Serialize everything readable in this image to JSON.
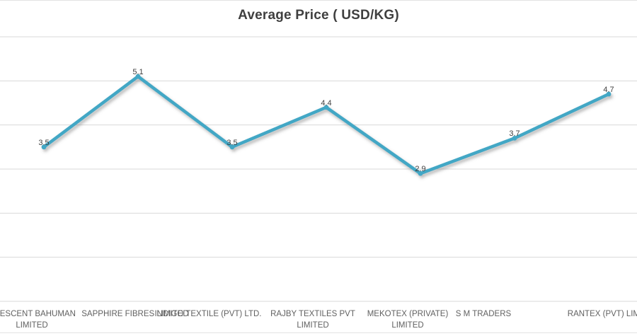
{
  "chart_data": {
    "type": "line",
    "title": "Average Price ( USD/KG)",
    "categories": [
      "CRESCENT BAHUMAN LIMITED",
      "SAPPHIRE FIBRES LIMITED",
      "INDIGO TEXTILE (PVT) LTD.",
      "RAJBY TEXTILES PVT LIMITED",
      "MEKOTEX (PRIVATE) LIMITED",
      "S M TRADERS",
      "RANTEX (PVT) LIMITED"
    ],
    "category_label_lines": [
      [
        "CRESCENT BAHUMAN",
        "LIMITED"
      ],
      [
        "SAPPHIRE FIBRES LIMITED"
      ],
      [
        "INDIGO TEXTILE (PVT) LTD."
      ],
      [
        "RAJBY TEXTILES PVT",
        "LIMITED"
      ],
      [
        "MEKOTEX (PRIVATE)",
        "LIMITED"
      ],
      [
        "S M TRADERS"
      ],
      [
        "RANTEX (PVT) LIMITED"
      ]
    ],
    "values": [
      3.5,
      5.1,
      3.5,
      4.4,
      2.9,
      3.7,
      4.7
    ],
    "data_labels": [
      "3.5",
      "5.1",
      "3.5",
      "4.4",
      "2.9",
      "3.7",
      "4.7"
    ],
    "xlabel": "",
    "ylabel": "",
    "ylim": [
      0,
      6
    ],
    "gridline_step": 1,
    "grid": "horizontal",
    "legend": "none",
    "colors": {
      "line": "#43a7c5",
      "marker": "#43a7c5",
      "gridline": "#d9d9d9",
      "title_text": "#3f3f3f",
      "data_label_text": "#3f3f3f",
      "axis_label_text": "#616161",
      "border": "#e2e2e2",
      "background": "#ffffff"
    }
  }
}
